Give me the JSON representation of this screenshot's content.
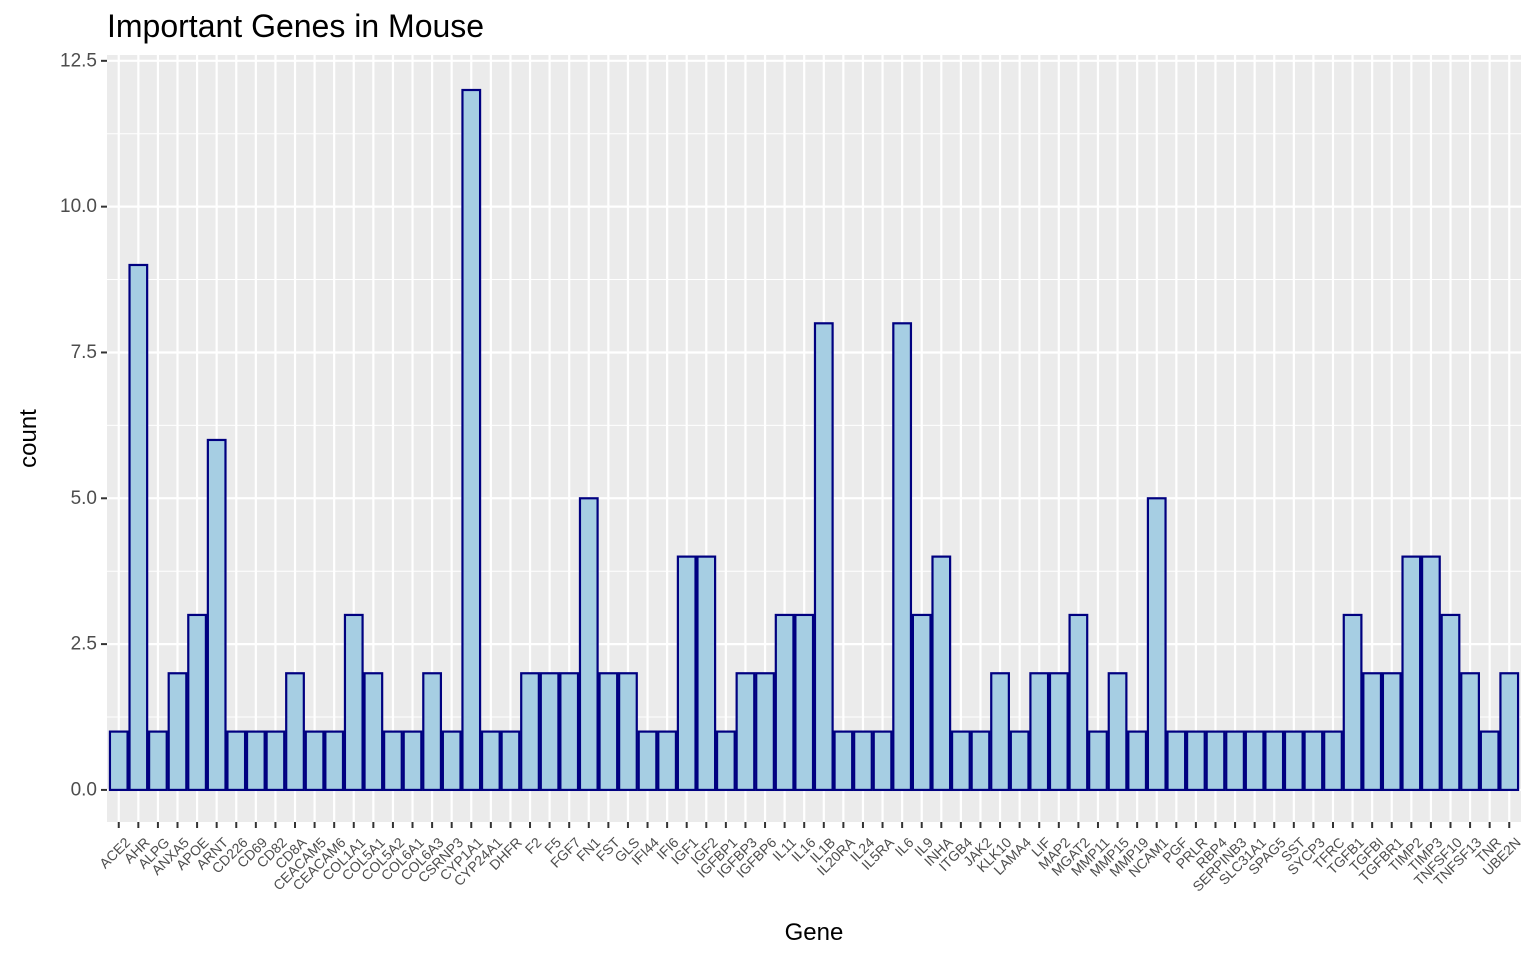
{
  "chart_data": {
    "type": "bar",
    "title": "Important Genes in Mouse",
    "xlabel": "Gene",
    "ylabel": "count",
    "ylim": [
      -0.55,
      12.6
    ],
    "y_ticks": [
      "0.0",
      "2.5",
      "5.0",
      "7.5",
      "10.0",
      "12.5"
    ],
    "y_tick_values": [
      0,
      2.5,
      5,
      7.5,
      10,
      12.5
    ],
    "grid": true,
    "colors": {
      "panel": "#ebebeb",
      "grid": "#ffffff",
      "bar_fill": "#a6cee3",
      "bar_stroke": "#000080",
      "tick_text": "#4d4d4d"
    },
    "categories": [
      "ACE2",
      "AHR",
      "ALPG",
      "ANXA5",
      "APOE",
      "ARNT",
      "CD226",
      "CD69",
      "CD82",
      "CD8A",
      "CEACAM5",
      "CEACAM6",
      "COL1A1",
      "COL5A1",
      "COL5A2",
      "COL6A1",
      "COL6A3",
      "CSRNP3",
      "CYP1A1",
      "CYP24A1",
      "DHFR",
      "F2",
      "F5",
      "FGF7",
      "FN1",
      "FST",
      "GLS",
      "IFI44",
      "IFI6",
      "IGF1",
      "IGF2",
      "IGFBP1",
      "IGFBP3",
      "IGFBP6",
      "IL11",
      "IL16",
      "IL1B",
      "IL20RA",
      "IL24",
      "IL5RA",
      "IL6",
      "IL9",
      "INHA",
      "ITGB4",
      "JAK2",
      "KLK10",
      "LAMA4",
      "LIF",
      "MAP2",
      "MGAT2",
      "MMP11",
      "MMP15",
      "MMP19",
      "NCAM1",
      "PGF",
      "PRLR",
      "RBP4",
      "SERPINB3",
      "SLC31A1",
      "SPAG5",
      "SST",
      "SYCP3",
      "TFRC",
      "TGFB1",
      "TGFBI",
      "TGFBR1",
      "TIMP2",
      "TIMP3",
      "TNFSF10",
      "TNFSF13",
      "TNR",
      "UBE2N"
    ],
    "values": [
      1,
      9,
      1,
      2,
      3,
      6,
      1,
      1,
      1,
      2,
      1,
      1,
      3,
      2,
      1,
      1,
      2,
      1,
      12,
      1,
      1,
      2,
      2,
      2,
      5,
      2,
      2,
      1,
      1,
      4,
      4,
      1,
      2,
      2,
      3,
      3,
      8,
      1,
      1,
      1,
      8,
      3,
      4,
      1,
      1,
      2,
      1,
      2,
      2,
      3,
      1,
      2,
      1,
      5,
      1,
      1,
      1,
      1,
      1,
      1,
      1,
      1,
      1,
      3,
      2,
      2,
      4,
      4,
      3,
      2,
      1,
      2
    ]
  }
}
